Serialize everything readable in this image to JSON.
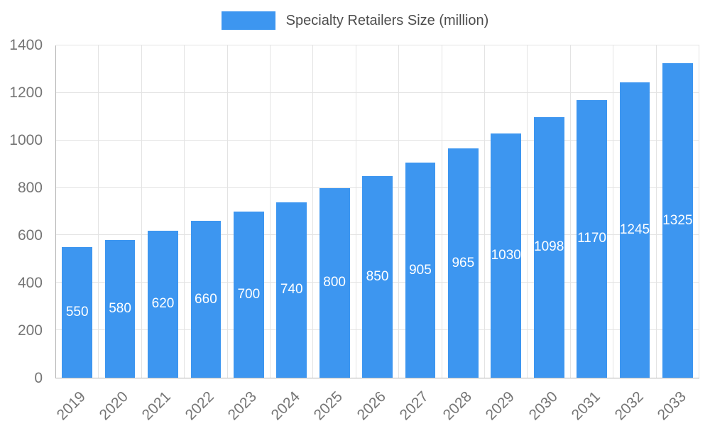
{
  "chart_data": {
    "type": "bar",
    "title": "Specialty Retailers Size (million)",
    "categories": [
      "2019",
      "2020",
      "2021",
      "2022",
      "2023",
      "2024",
      "2025",
      "2026",
      "2027",
      "2028",
      "2029",
      "2030",
      "2031",
      "2032",
      "2033"
    ],
    "values": [
      550,
      580,
      620,
      660,
      700,
      740,
      800,
      850,
      905,
      965,
      1030,
      1098,
      1170,
      1245,
      1325
    ],
    "xlabel": "",
    "ylabel": "",
    "ylim": [
      0,
      1400
    ],
    "yticks": [
      0,
      200,
      400,
      600,
      800,
      1000,
      1200,
      1400
    ],
    "grid": true,
    "legend_position": "top",
    "value_labels": "inside-center"
  },
  "colors": {
    "bar": "#3d96f0",
    "bar_label_text": "#ffffff",
    "grid": "#e3e3e3",
    "axis": "#b3b3b3",
    "tick_text": "#757575",
    "legend_text": "#4d4d4d"
  }
}
